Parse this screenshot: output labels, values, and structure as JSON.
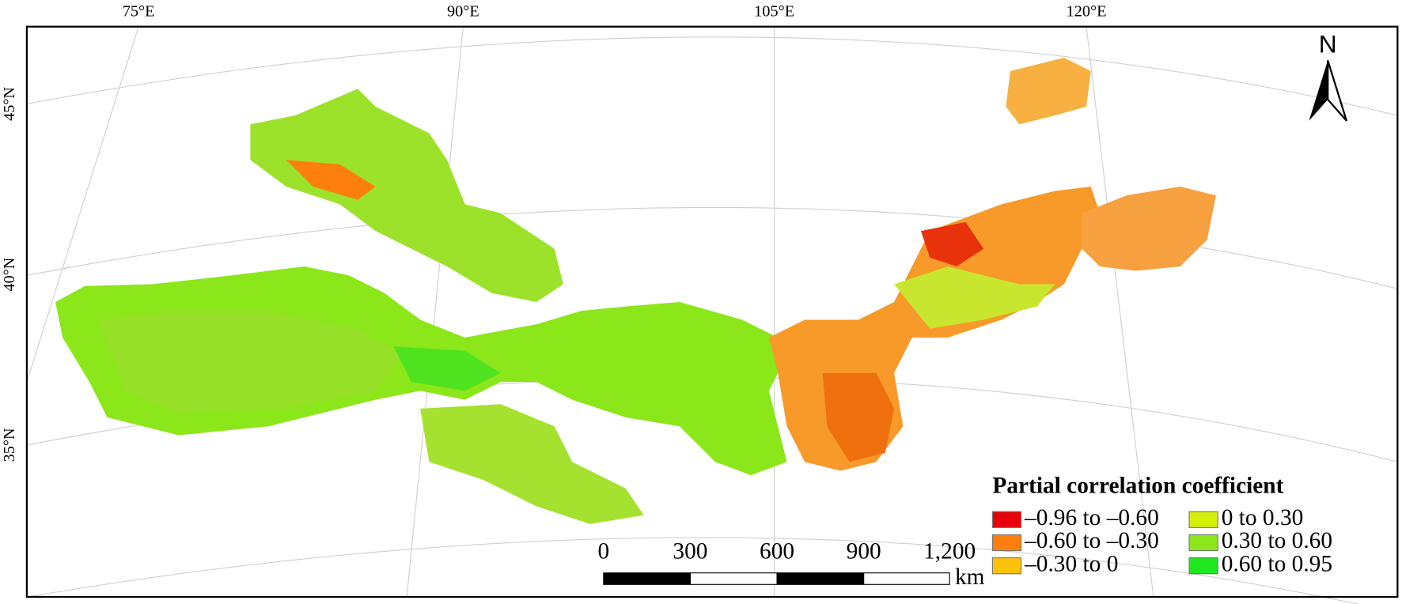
{
  "map": {
    "graticule": {
      "longitudes": [
        "75°E",
        "90°E",
        "105°E",
        "120°E"
      ],
      "latitudes": [
        "45°N",
        "40°N",
        "35°N"
      ]
    },
    "north_arrow": "N",
    "legend": {
      "title": "Partial correlation coefficient",
      "items": [
        {
          "label": "–0.96 to –0.60",
          "color": "#e8000b"
        },
        {
          "label": "–0.60 to –0.30",
          "color": "#ff7f0e"
        },
        {
          "label": "–0.30 to 0",
          "color": "#ffc20a"
        },
        {
          "label": "0 to 0.30",
          "color": "#d4f00a"
        },
        {
          "label": "0.30 to 0.60",
          "color": "#8be61a"
        },
        {
          "label": "0.60 to 0.95",
          "color": "#1fe81f"
        }
      ]
    },
    "scale_bar": {
      "labels": [
        "0",
        "300",
        "600",
        "900",
        "1,200"
      ],
      "unit": "km"
    }
  }
}
